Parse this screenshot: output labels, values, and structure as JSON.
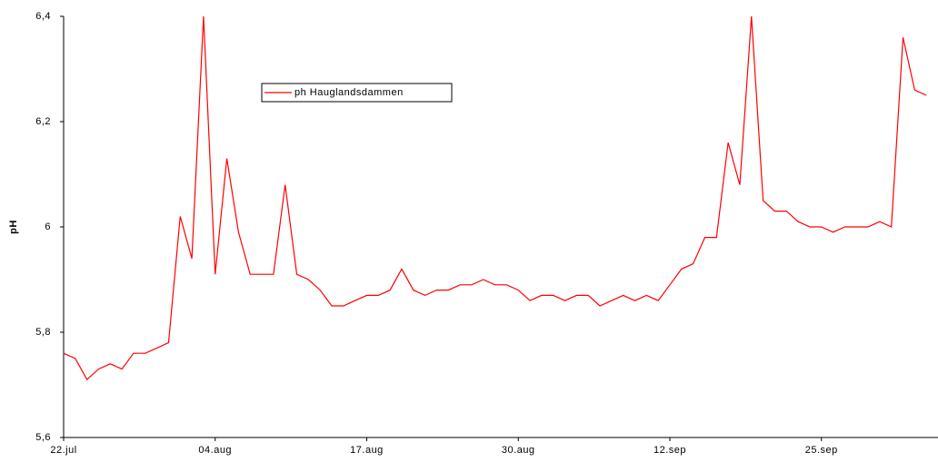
{
  "chart_data": {
    "type": "line",
    "y_label": "pH",
    "x": [
      "07-22",
      "07-23",
      "07-24",
      "07-25",
      "07-26",
      "07-27",
      "07-28",
      "07-29",
      "07-30",
      "07-31",
      "08-01",
      "08-02",
      "08-03",
      "08-04",
      "08-05",
      "08-06",
      "08-07",
      "08-08",
      "08-09",
      "08-10",
      "08-11",
      "08-12",
      "08-13",
      "08-14",
      "08-15",
      "08-16",
      "08-17",
      "08-18",
      "08-19",
      "08-20",
      "08-21",
      "08-22",
      "08-23",
      "08-24",
      "08-25",
      "08-26",
      "08-27",
      "08-28",
      "08-29",
      "08-30",
      "08-31",
      "09-01",
      "09-02",
      "09-03",
      "09-04",
      "09-05",
      "09-06",
      "09-07",
      "09-08",
      "09-09",
      "09-10",
      "09-11",
      "09-12",
      "09-13",
      "09-14",
      "09-15",
      "09-16",
      "09-17",
      "09-18",
      "09-19",
      "09-20",
      "09-21",
      "09-22",
      "09-23",
      "09-24",
      "09-25",
      "09-26",
      "09-27",
      "09-28",
      "09-29",
      "09-30",
      "10-01",
      "10-02",
      "10-03",
      "10-04"
    ],
    "series": [
      {
        "name": "ph Hauglandsdammen",
        "color": "#ff0000",
        "values": [
          5.76,
          5.75,
          5.71,
          5.73,
          5.74,
          5.73,
          5.76,
          5.76,
          5.77,
          5.78,
          6.02,
          5.94,
          6.4,
          5.91,
          6.13,
          5.99,
          5.91,
          5.91,
          5.91,
          6.08,
          5.91,
          5.9,
          5.88,
          5.85,
          5.85,
          5.86,
          5.87,
          5.87,
          5.88,
          5.92,
          5.88,
          5.87,
          5.88,
          5.88,
          5.89,
          5.89,
          5.9,
          5.89,
          5.89,
          5.88,
          5.86,
          5.87,
          5.87,
          5.86,
          5.87,
          5.87,
          5.85,
          5.86,
          5.87,
          5.86,
          5.87,
          5.86,
          5.89,
          5.92,
          5.93,
          5.98,
          5.98,
          6.16,
          6.08,
          6.4,
          6.05,
          6.03,
          6.03,
          6.01,
          6,
          6,
          5.99,
          6,
          6,
          6,
          6.01,
          6,
          6.36,
          6.26,
          6.25
        ]
      }
    ],
    "xlim": [
      "07-22",
      "10-05"
    ],
    "xticks": [
      {
        "value": "07-22",
        "label": "22.jul"
      },
      {
        "value": "08-04",
        "label": "04.aug"
      },
      {
        "value": "08-17",
        "label": "17.aug"
      },
      {
        "value": "08-30",
        "label": "30.aug"
      },
      {
        "value": "09-12",
        "label": "12.sep"
      },
      {
        "value": "09-25",
        "label": "25.sep"
      }
    ],
    "ylim": [
      5.6,
      6.4
    ],
    "yticks": [
      {
        "value": 5.6,
        "label": "5,6"
      },
      {
        "value": 5.8,
        "label": "5,8"
      },
      6,
      {
        "value": 6.2,
        "label": "6,2"
      },
      {
        "value": 6.4,
        "label": "6,4"
      }
    ],
    "grid": false
  }
}
